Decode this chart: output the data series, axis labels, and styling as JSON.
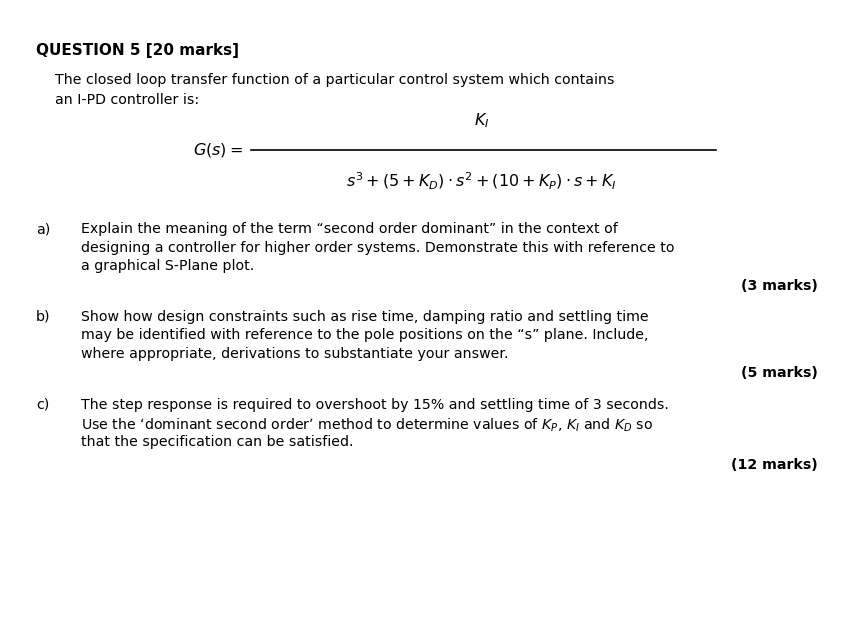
{
  "background_color": "#ffffff",
  "text_color": "#000000",
  "title": "QUESTION 5 [20 marks]",
  "title_fontsize": 11.0,
  "body_fontsize": 10.2,
  "marks_fontsize": 10.2,
  "formula_fontsize": 11.5,
  "intro_line1": "The closed loop transfer function of a particular control system which contains",
  "intro_line2": "an I-PD controller is:",
  "qa_label": "a)",
  "qa_text_line1": "Explain the meaning of the term “second order dominant” in the context of",
  "qa_text_line2": "designing a controller for higher order systems. Demonstrate this with reference to",
  "qa_text_line3": "a graphical S-Plane plot.",
  "qa_marks": "(3 marks)",
  "qb_label": "b)",
  "qb_text_line1": "Show how design constraints such as rise time, damping ratio and settling time",
  "qb_text_line2": "may be identified with reference to the pole positions on the “s” plane. Include,",
  "qb_text_line3": "where appropriate, derivations to substantiate your answer.",
  "qb_marks": "(5 marks)",
  "qc_label": "c)",
  "qc_text_line1": "The step response is required to overshoot by 15% and settling time of 3 seconds.",
  "qc_text_line2": "Use the ‘dominant second order’ method to determine values of $K_P$, $K_I$ and $K_D$ so",
  "qc_text_line3": "that the specification can be satisfied.",
  "qc_marks": "(12 marks)"
}
